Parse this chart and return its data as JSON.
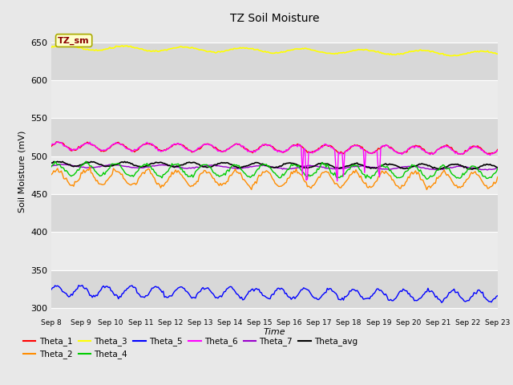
{
  "title": "TZ Soil Moisture",
  "xlabel": "Time",
  "ylabel": "Soil Moisture (mV)",
  "ylim": [
    290,
    670
  ],
  "yticks": [
    300,
    350,
    400,
    450,
    500,
    550,
    600,
    650
  ],
  "n_points": 360,
  "series": {
    "Theta_1": {
      "color": "#ff0000",
      "base": 513,
      "amp": 5,
      "trend": -0.35,
      "freq": 1.0,
      "phase": 0.0,
      "lw": 1.0
    },
    "Theta_2": {
      "color": "#ff8c00",
      "base": 472,
      "amp": 10,
      "trend": -0.25,
      "freq": 1.0,
      "phase": 0.3,
      "lw": 1.0
    },
    "Theta_3": {
      "color": "#ffff00",
      "base": 643,
      "amp": 3,
      "trend": -0.55,
      "freq": 0.5,
      "phase": 0.1,
      "lw": 1.2
    },
    "Theta_4": {
      "color": "#00cc00",
      "base": 483,
      "amp": 8,
      "trend": -0.3,
      "freq": 1.0,
      "phase": 0.5,
      "lw": 1.0
    },
    "Theta_5": {
      "color": "#0000ff",
      "base": 323,
      "amp": 7,
      "trend": -0.5,
      "freq": 1.2,
      "phase": 0.2,
      "lw": 1.0
    },
    "Theta_6": {
      "color": "#ff00ff",
      "base": 513,
      "amp": 5,
      "trend": -0.38,
      "freq": 1.0,
      "phase": 0.1,
      "lw": 1.0
    },
    "Theta_7": {
      "color": "#9900cc",
      "base": 487,
      "amp": 2,
      "trend": -0.2,
      "freq": 0.6,
      "phase": 0.0,
      "lw": 1.0
    },
    "Theta_avg": {
      "color": "#000000",
      "base": 490,
      "amp": 3,
      "trend": -0.28,
      "freq": 0.9,
      "phase": 0.2,
      "lw": 1.2
    }
  },
  "xtick_labels": [
    "Sep 8",
    "Sep 9",
    "Sep 10",
    "Sep 11",
    "Sep 12",
    "Sep 13",
    "Sep 14",
    "Sep 15",
    "Sep 16",
    "Sep 17",
    "Sep 18",
    "Sep 19",
    "Sep 20",
    "Sep 21",
    "Sep 22",
    "Sep 23"
  ],
  "annotation_label": "TZ_sm",
  "annotation_box_facecolor": "#ffffcc",
  "annotation_box_edgecolor": "#aaaa00",
  "annotation_text_color": "#8b0000",
  "bg_color": "#e8e8e8",
  "band_light": "#ebebeb",
  "band_dark": "#d8d8d8",
  "legend_order": [
    "Theta_1",
    "Theta_2",
    "Theta_3",
    "Theta_4",
    "Theta_5",
    "Theta_6",
    "Theta_7",
    "Theta_avg"
  ]
}
